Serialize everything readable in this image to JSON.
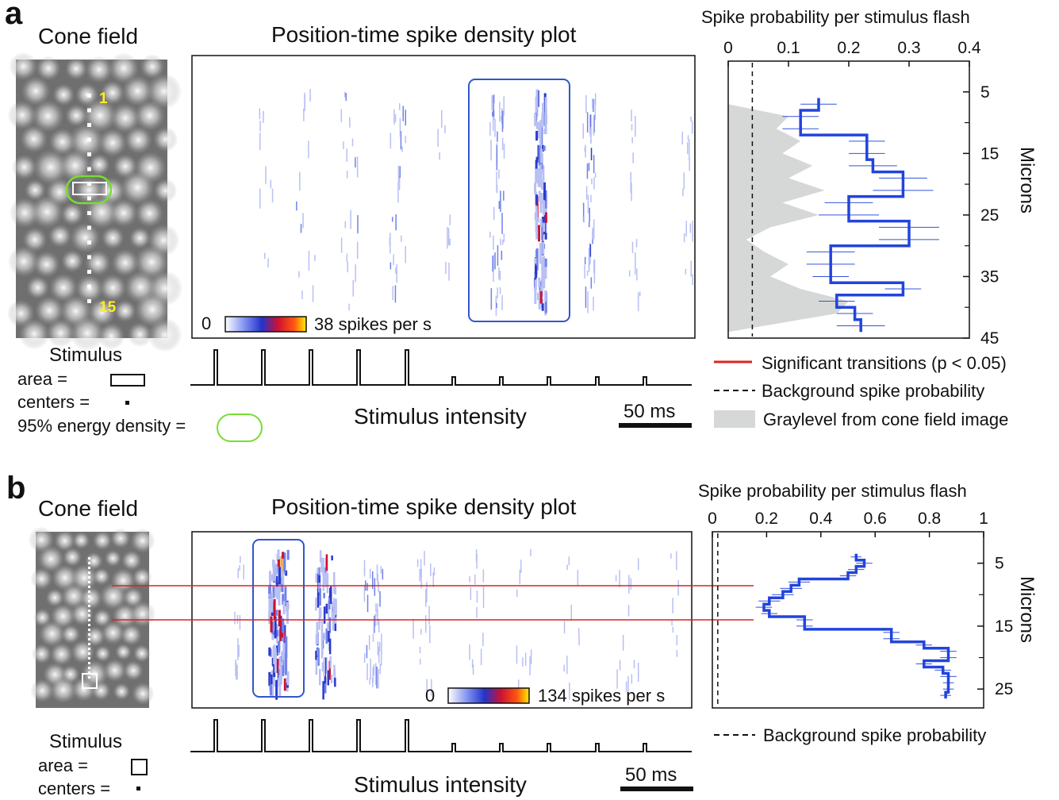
{
  "panels": [
    {
      "letter": "a",
      "cone_field_title": "Cone field",
      "cone_labels": [
        "1",
        "15"
      ],
      "stimulus": {
        "title": "Stimulus",
        "area_label": "area   =",
        "centers_label": "centers  =",
        "energy_label": "95% energy density ="
      },
      "raster_title": "Position-time spike density plot",
      "colorbar": {
        "min_label": "0",
        "max_label": "38 spikes per s"
      },
      "stimulus_axis_label": "Stimulus intensity",
      "scale_label": "50 ms",
      "profile_title": "Spike probability per stimulus flash",
      "profile_ylabel": "Microns",
      "legend": [
        {
          "label": "Significant transitions (p < 0.05)",
          "color": "#e02020"
        },
        {
          "label": "Background spike probability",
          "color": "#111111"
        },
        {
          "label": "Graylevel from cone field image",
          "color": "#d6d8d8"
        }
      ]
    },
    {
      "letter": "b",
      "cone_field_title": "Cone field",
      "stimulus": {
        "title": "Stimulus",
        "area_label": "area   =",
        "centers_label": "centers  ="
      },
      "raster_title": "Position-time spike density plot",
      "colorbar": {
        "min_label": "0",
        "max_label": "134 spikes per s"
      },
      "stimulus_axis_label": "Stimulus intensity",
      "scale_label": "50 ms",
      "profile_title": "Spike probability per stimulus flash",
      "profile_ylabel": "Microns",
      "legend": [
        {
          "label": "Background spike probability",
          "color": "#111111"
        }
      ]
    }
  ],
  "chart_data": [
    {
      "type": "line",
      "panel": "a",
      "title": "Spike probability per stimulus flash",
      "ylabel": "Microns",
      "xlim": [
        0,
        0.4
      ],
      "ylim": [
        45,
        0
      ],
      "x_ticks": [
        "0",
        "0.1",
        "0.2",
        "0.3",
        "0.4"
      ],
      "y_ticks": [
        "5",
        "15",
        "25",
        "35",
        "45"
      ],
      "background_probability": 0.04,
      "series": [
        {
          "name": "Spike probability",
          "color": "#2244dd",
          "microns": [
            7,
            9,
            11,
            13,
            15,
            17,
            19,
            21,
            23,
            25,
            27,
            29,
            31,
            33,
            35,
            37,
            39,
            41,
            43
          ],
          "values": [
            0.15,
            0.12,
            0.12,
            0.23,
            0.23,
            0.24,
            0.29,
            0.29,
            0.2,
            0.2,
            0.3,
            0.3,
            0.17,
            0.17,
            0.17,
            0.29,
            0.18,
            0.21,
            0.22
          ],
          "errors": [
            0.03,
            0.03,
            0.03,
            0.03,
            0.03,
            0.04,
            0.04,
            0.05,
            0.04,
            0.05,
            0.05,
            0.05,
            0.04,
            0.04,
            0.03,
            0.03,
            0.03,
            0.03,
            0.04
          ]
        }
      ],
      "significant_transitions_at_microns": [
        10,
        24,
        28,
        34
      ]
    },
    {
      "type": "line",
      "panel": "b",
      "title": "Spike probability per stimulus flash",
      "ylabel": "Microns",
      "xlim": [
        0,
        1
      ],
      "ylim": [
        28,
        0
      ],
      "x_ticks": [
        "0",
        "0.2",
        "0.4",
        "0.6",
        "0.8",
        "1"
      ],
      "y_ticks": [
        "5",
        "15",
        "25"
      ],
      "background_probability": 0.02,
      "series": [
        {
          "name": "Spike probability",
          "color": "#2244dd",
          "microns": [
            4,
            5,
            6,
            7,
            8,
            9,
            10,
            11,
            12,
            13,
            14,
            15,
            16,
            17,
            18,
            19,
            20,
            21,
            22,
            23,
            24,
            25,
            26
          ],
          "values": [
            0.53,
            0.56,
            0.53,
            0.5,
            0.32,
            0.29,
            0.26,
            0.21,
            0.19,
            0.21,
            0.34,
            0.34,
            0.66,
            0.66,
            0.78,
            0.87,
            0.87,
            0.78,
            0.85,
            0.87,
            0.87,
            0.87,
            0.86
          ],
          "errors": [
            0.02,
            0.03,
            0.03,
            0.03,
            0.04,
            0.04,
            0.04,
            0.04,
            0.03,
            0.03,
            0.03,
            0.03,
            0.03,
            0.03,
            0.03,
            0.03,
            0.03,
            0.03,
            0.03,
            0.03,
            0.02,
            0.02,
            0.02
          ]
        }
      ]
    }
  ]
}
